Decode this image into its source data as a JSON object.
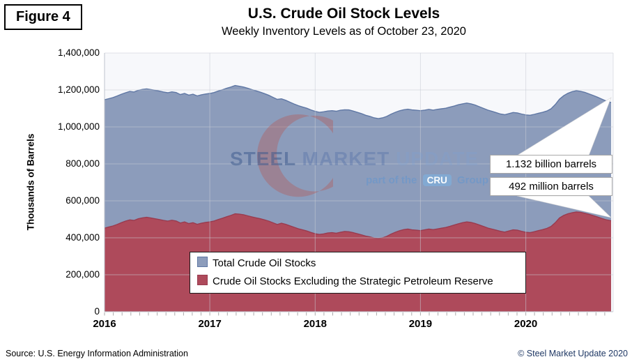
{
  "figure_label": "Figure 4",
  "title": "U.S. Crude Oil Stock Levels",
  "subtitle": "Weekly Inventory Levels as of October 23, 2020",
  "y_axis_title": "Thousands of Barrels",
  "source": "Source: U.S. Energy Information Administration",
  "copyright": "© Steel Market Update 2020",
  "watermark": {
    "word1": "STEEL",
    "word2": "MARKET",
    "word3": "UPDATE",
    "tagline_prefix": "part of the",
    "badge": "CRU",
    "tagline_suffix": "Group"
  },
  "callouts": {
    "total": "1.132 billion barrels",
    "excl": "492 million barrels"
  },
  "legend": {
    "total_label": "Total Crude Oil Stocks",
    "excl_label": "Crude Oil Stocks Excluding the Strategic Petroleum Reserve"
  },
  "colors": {
    "total_fill": "#8C9CBB",
    "total_line": "#5F77A4",
    "excl_fill": "#AE4A5B",
    "excl_line": "#993B4F",
    "plot_bg": "#F7F8FB",
    "gridline": "#C9CDD6",
    "tick": "#ABABAB",
    "axis_line": "#BFC3CC",
    "copyright": "#1F3864"
  },
  "chart_data": {
    "type": "area",
    "title": "U.S. Crude Oil Stock Levels",
    "subtitle": "Weekly Inventory Levels as of October 23, 2020",
    "xlabel": "",
    "ylabel": "Thousands of Barrels",
    "ylim": [
      0,
      1400000
    ],
    "x_range": [
      2016.0,
      2020.83
    ],
    "grid": true,
    "legend_position": "inside-bottom-center",
    "y_ticks": [
      "0",
      "200,000",
      "400,000",
      "600,000",
      "800,000",
      "1,000,000",
      "1,200,000",
      "1,400,000"
    ],
    "x_ticks": [
      "2016",
      "2017",
      "2018",
      "2019",
      "2020"
    ],
    "series_names": [
      "Total Crude Oil Stocks",
      "Crude Oil Stocks Excluding the Strategic Petroleum Reserve"
    ],
    "values_unit": "million barrels (axis plotted in thousands of barrels)",
    "end_values": {
      "total": "1.132 billion barrels",
      "excl": "492 million barrels"
    },
    "points": [
      [
        2016.0,
        1147,
        452
      ],
      [
        2016.04,
        1153,
        458
      ],
      [
        2016.08,
        1159,
        464
      ],
      [
        2016.12,
        1167,
        472
      ],
      [
        2016.16,
        1177,
        482
      ],
      [
        2016.2,
        1185,
        490
      ],
      [
        2016.24,
        1192,
        497
      ],
      [
        2016.28,
        1189,
        494
      ],
      [
        2016.32,
        1198,
        503
      ],
      [
        2016.36,
        1203,
        508
      ],
      [
        2016.4,
        1206,
        511
      ],
      [
        2016.44,
        1202,
        507
      ],
      [
        2016.48,
        1198,
        503
      ],
      [
        2016.52,
        1194,
        499
      ],
      [
        2016.56,
        1189,
        494
      ],
      [
        2016.6,
        1185,
        490
      ],
      [
        2016.64,
        1190,
        495
      ],
      [
        2016.68,
        1186,
        491
      ],
      [
        2016.72,
        1175,
        480
      ],
      [
        2016.76,
        1181,
        486
      ],
      [
        2016.8,
        1172,
        477
      ],
      [
        2016.84,
        1177,
        482
      ],
      [
        2016.88,
        1168,
        473
      ],
      [
        2016.92,
        1174,
        479
      ],
      [
        2016.96,
        1178,
        483
      ],
      [
        2017.0,
        1181,
        486
      ],
      [
        2017.04,
        1186,
        491
      ],
      [
        2017.08,
        1194,
        499
      ],
      [
        2017.12,
        1201,
        506
      ],
      [
        2017.16,
        1209,
        514
      ],
      [
        2017.2,
        1216,
        521
      ],
      [
        2017.24,
        1224,
        530
      ],
      [
        2017.28,
        1220,
        528
      ],
      [
        2017.32,
        1216,
        525
      ],
      [
        2017.36,
        1209,
        519
      ],
      [
        2017.4,
        1202,
        513
      ],
      [
        2017.44,
        1195,
        508
      ],
      [
        2017.48,
        1188,
        503
      ],
      [
        2017.52,
        1180,
        497
      ],
      [
        2017.56,
        1171,
        490
      ],
      [
        2017.6,
        1160,
        481
      ],
      [
        2017.64,
        1149,
        472
      ],
      [
        2017.68,
        1152,
        479
      ],
      [
        2017.72,
        1144,
        473
      ],
      [
        2017.76,
        1134,
        465
      ],
      [
        2017.8,
        1124,
        457
      ],
      [
        2017.84,
        1115,
        449
      ],
      [
        2017.88,
        1108,
        443
      ],
      [
        2017.92,
        1101,
        437
      ],
      [
        2017.96,
        1092,
        429
      ],
      [
        2018.0,
        1084,
        422
      ],
      [
        2018.04,
        1079,
        418
      ],
      [
        2018.08,
        1082,
        421
      ],
      [
        2018.12,
        1086,
        426
      ],
      [
        2018.16,
        1088,
        428
      ],
      [
        2018.2,
        1085,
        425
      ],
      [
        2018.24,
        1090,
        430
      ],
      [
        2018.28,
        1093,
        434
      ],
      [
        2018.32,
        1092,
        433
      ],
      [
        2018.36,
        1086,
        428
      ],
      [
        2018.4,
        1079,
        422
      ],
      [
        2018.44,
        1072,
        416
      ],
      [
        2018.48,
        1063,
        409
      ],
      [
        2018.52,
        1057,
        405
      ],
      [
        2018.56,
        1049,
        399
      ],
      [
        2018.6,
        1045,
        396
      ],
      [
        2018.64,
        1049,
        400
      ],
      [
        2018.68,
        1057,
        408
      ],
      [
        2018.72,
        1069,
        420
      ],
      [
        2018.76,
        1079,
        430
      ],
      [
        2018.8,
        1087,
        438
      ],
      [
        2018.84,
        1093,
        444
      ],
      [
        2018.88,
        1096,
        447
      ],
      [
        2018.92,
        1092,
        443
      ],
      [
        2018.96,
        1090,
        441
      ],
      [
        2019.0,
        1088,
        439
      ],
      [
        2019.04,
        1091,
        443
      ],
      [
        2019.08,
        1095,
        447
      ],
      [
        2019.12,
        1091,
        444
      ],
      [
        2019.16,
        1095,
        448
      ],
      [
        2019.2,
        1098,
        452
      ],
      [
        2019.24,
        1101,
        456
      ],
      [
        2019.28,
        1107,
        462
      ],
      [
        2019.32,
        1113,
        469
      ],
      [
        2019.36,
        1120,
        476
      ],
      [
        2019.4,
        1125,
        482
      ],
      [
        2019.44,
        1129,
        486
      ],
      [
        2019.48,
        1125,
        483
      ],
      [
        2019.52,
        1118,
        477
      ],
      [
        2019.56,
        1109,
        469
      ],
      [
        2019.6,
        1100,
        461
      ],
      [
        2019.64,
        1091,
        453
      ],
      [
        2019.68,
        1084,
        447
      ],
      [
        2019.72,
        1077,
        441
      ],
      [
        2019.76,
        1070,
        435
      ],
      [
        2019.8,
        1066,
        431
      ],
      [
        2019.84,
        1072,
        437
      ],
      [
        2019.88,
        1078,
        443
      ],
      [
        2019.92,
        1076,
        441
      ],
      [
        2019.96,
        1070,
        435
      ],
      [
        2020.0,
        1065,
        430
      ],
      [
        2020.04,
        1063,
        428
      ],
      [
        2020.08,
        1068,
        433
      ],
      [
        2020.12,
        1074,
        439
      ],
      [
        2020.16,
        1079,
        444
      ],
      [
        2020.2,
        1086,
        451
      ],
      [
        2020.24,
        1098,
        461
      ],
      [
        2020.28,
        1121,
        482
      ],
      [
        2020.32,
        1150,
        507
      ],
      [
        2020.36,
        1169,
        521
      ],
      [
        2020.4,
        1182,
        530
      ],
      [
        2020.44,
        1191,
        536
      ],
      [
        2020.48,
        1196,
        540
      ],
      [
        2020.52,
        1193,
        538
      ],
      [
        2020.56,
        1187,
        533
      ],
      [
        2020.6,
        1179,
        527
      ],
      [
        2020.64,
        1170,
        520
      ],
      [
        2020.68,
        1161,
        513
      ],
      [
        2020.72,
        1151,
        505
      ],
      [
        2020.76,
        1141,
        498
      ],
      [
        2020.81,
        1132,
        492
      ]
    ]
  }
}
